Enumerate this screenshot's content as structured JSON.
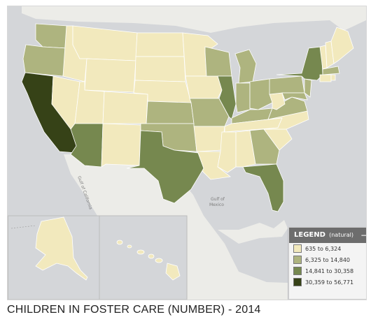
{
  "caption": "CHILDREN IN FOSTER CARE (NUMBER) - 2014",
  "legend": {
    "title": "LEGEND",
    "subtitle": "(natural)",
    "collapse_icon": "minus-icon",
    "classes": [
      {
        "label": "635 to 6,324",
        "color": "#f2e9bd"
      },
      {
        "label": "6,325 to 14,840",
        "color": "#aeb47f"
      },
      {
        "label": "14,841 to 30,358",
        "color": "#76884f"
      },
      {
        "label": "30,359 to 56,771",
        "color": "#364217"
      }
    ]
  },
  "map_labels": {
    "gulf_line1": "Gulf of",
    "gulf_line2": "Mexico",
    "baja": "Gulf of California"
  },
  "map_colors": {
    "land": "#ecece8",
    "water": "#d4d6d9"
  }
}
